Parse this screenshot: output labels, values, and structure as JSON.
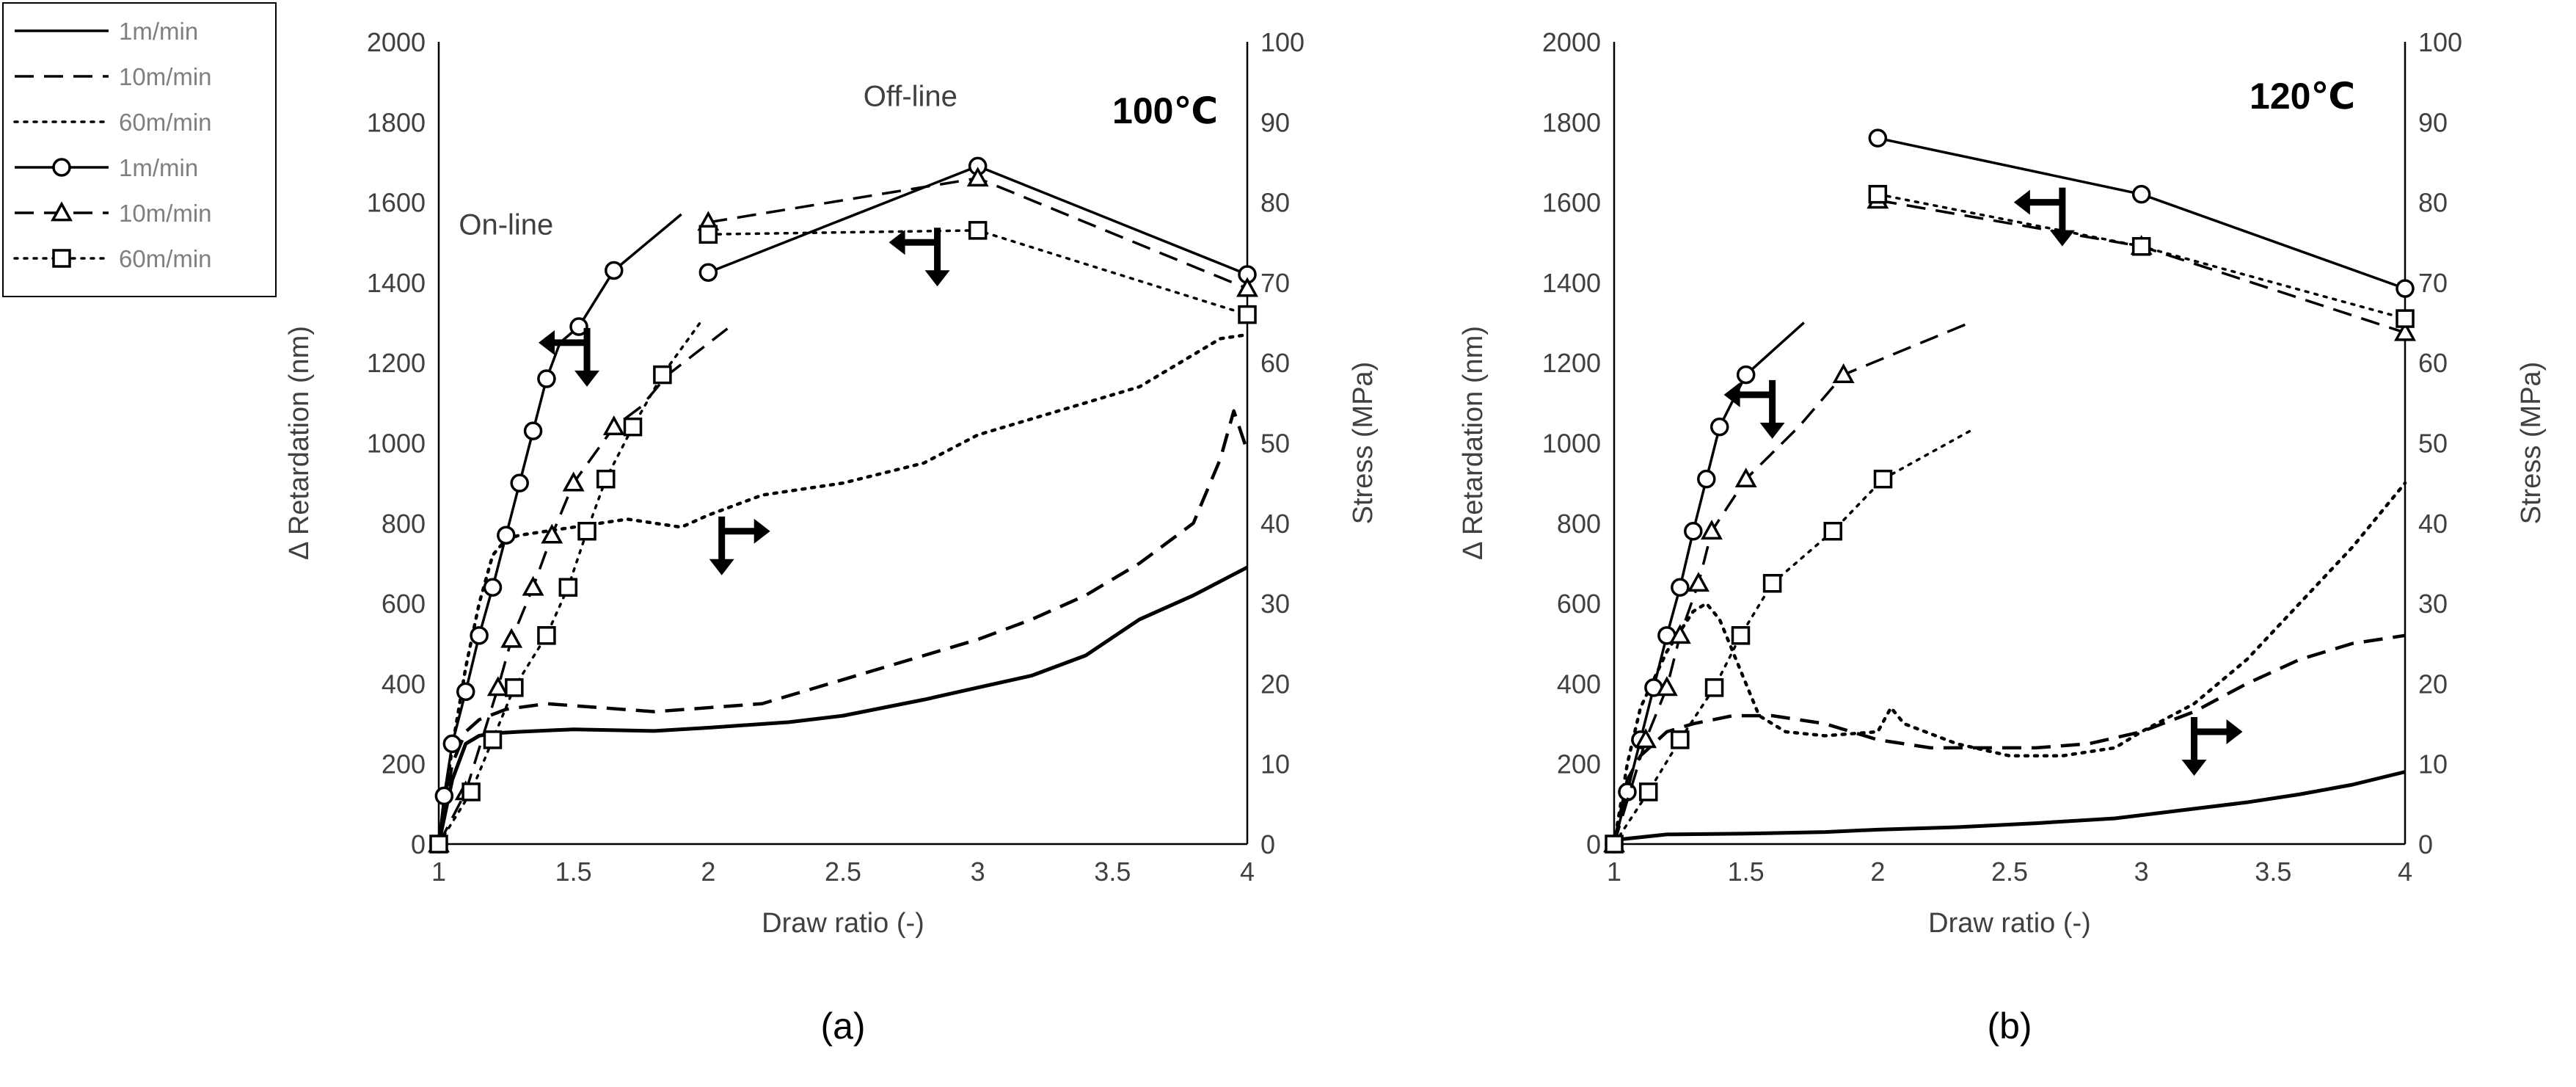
{
  "legend": {
    "entries": [
      {
        "label": "1m/min",
        "line": "solid",
        "marker": "none"
      },
      {
        "label": "10m/min",
        "line": "dashed",
        "marker": "none"
      },
      {
        "label": "60m/min",
        "line": "dotted",
        "marker": "none"
      },
      {
        "label": "1m/min",
        "line": "solid",
        "marker": "circle"
      },
      {
        "label": "10m/min",
        "line": "dashed",
        "marker": "triangle"
      },
      {
        "label": "60m/min",
        "line": "dotted",
        "marker": "square"
      }
    ]
  },
  "chart_data": [
    {
      "type": "line",
      "panel_label": "(a)",
      "temperature_label": "100℃",
      "xlabel": "Draw ratio (-)",
      "ylabel_left": "Δ Retardation (nm)",
      "ylabel_right": "Stress (MPa)",
      "xlim": [
        1,
        4
      ],
      "ylim_left": [
        0,
        2000
      ],
      "ylim_right": [
        0,
        100
      ],
      "x_ticks": [
        "1",
        "1.5",
        "2",
        "2.5",
        "3",
        "3.5",
        "4"
      ],
      "y_left_ticks": [
        "0",
        "200",
        "400",
        "600",
        "800",
        "1000",
        "1200",
        "1400",
        "1600",
        "1800",
        "2000"
      ],
      "y_right_ticks": [
        "0",
        "10",
        "20",
        "30",
        "40",
        "50",
        "60",
        "70",
        "80",
        "90",
        "100"
      ],
      "annotations": [
        "On-line",
        "Off-line"
      ],
      "retardation_series": [
        {
          "speed": "1m/min",
          "mode": "On-line",
          "line": "solid",
          "marker": "circle",
          "x": [
            1.0,
            1.02,
            1.05,
            1.1,
            1.15,
            1.2,
            1.25,
            1.3,
            1.35,
            1.4,
            1.45,
            1.52,
            1.65,
            1.9
          ],
          "y": [
            0,
            120,
            250,
            380,
            520,
            640,
            770,
            900,
            1030,
            1160,
            1250,
            1290,
            1430,
            1570
          ],
          "marked": [
            true,
            true,
            true,
            true,
            true,
            true,
            true,
            true,
            true,
            true,
            false,
            true,
            true,
            false
          ]
        },
        {
          "speed": "10m/min",
          "mode": "On-line",
          "line": "dashed",
          "marker": "triangle",
          "x": [
            1.0,
            1.1,
            1.22,
            1.27,
            1.35,
            1.42,
            1.5,
            1.65,
            1.75,
            1.85,
            2.1
          ],
          "y": [
            0,
            130,
            390,
            510,
            640,
            770,
            900,
            1040,
            1090,
            1170,
            1300
          ],
          "marked": [
            true,
            true,
            true,
            true,
            true,
            true,
            true,
            true,
            false,
            false,
            false
          ]
        },
        {
          "speed": "60m/min",
          "mode": "On-line",
          "line": "dotted",
          "marker": "square",
          "x": [
            1.0,
            1.12,
            1.2,
            1.28,
            1.4,
            1.48,
            1.55,
            1.62,
            1.72,
            1.83,
            1.97
          ],
          "y": [
            0,
            130,
            260,
            390,
            520,
            640,
            780,
            910,
            1040,
            1170,
            1300
          ],
          "marked": [
            true,
            true,
            true,
            true,
            true,
            true,
            true,
            true,
            true,
            true,
            false
          ]
        },
        {
          "speed": "1m/min",
          "mode": "Off-line",
          "line": "solid",
          "marker": "circle",
          "x": [
            2.0,
            3.0,
            4.0
          ],
          "y": [
            1425,
            1690,
            1420
          ],
          "marked": [
            true,
            true,
            true
          ]
        },
        {
          "speed": "10m/min",
          "mode": "Off-line",
          "line": "dashed",
          "marker": "triangle",
          "x": [
            2.0,
            3.0,
            4.0
          ],
          "y": [
            1550,
            1660,
            1385
          ],
          "marked": [
            true,
            true,
            true
          ]
        },
        {
          "speed": "60m/min",
          "mode": "Off-line",
          "line": "dotted",
          "marker": "square",
          "x": [
            2.0,
            3.0,
            4.0
          ],
          "y": [
            1520,
            1530,
            1320
          ],
          "marked": [
            true,
            true,
            true
          ]
        }
      ],
      "stress_series": [
        {
          "speed": "1m/min",
          "line": "solid",
          "x": [
            1.0,
            1.05,
            1.1,
            1.15,
            1.2,
            1.3,
            1.5,
            1.8,
            2.0,
            2.3,
            2.5,
            2.8,
            3.0,
            3.2,
            3.4,
            3.6,
            3.8,
            4.0
          ],
          "y": [
            0,
            8,
            12.5,
            13.5,
            13.8,
            14,
            14.3,
            14.1,
            14.5,
            15.2,
            16,
            18,
            19.5,
            21,
            23.5,
            28,
            31,
            34.5
          ]
        },
        {
          "speed": "10m/min",
          "line": "dashed",
          "x": [
            1.0,
            1.05,
            1.1,
            1.15,
            1.25,
            1.4,
            1.6,
            1.8,
            2.0,
            2.2,
            2.4,
            2.6,
            2.8,
            3.0,
            3.2,
            3.4,
            3.6,
            3.8,
            3.9,
            3.95,
            4.0
          ],
          "y": [
            0,
            10,
            14,
            15.5,
            16.8,
            17.5,
            17,
            16.5,
            17,
            17.5,
            19.5,
            21.5,
            23.5,
            25.5,
            28,
            31,
            35,
            40,
            48,
            54,
            49
          ]
        },
        {
          "speed": "60m/min",
          "line": "dotted",
          "x": [
            1.0,
            1.05,
            1.1,
            1.15,
            1.2,
            1.25,
            1.3,
            1.5,
            1.7,
            1.9,
            2.0,
            2.2,
            2.5,
            2.8,
            3.0,
            3.3,
            3.6,
            3.9,
            4.0
          ],
          "y": [
            0,
            12,
            22,
            30,
            36,
            38,
            38.5,
            39.5,
            40.5,
            39.5,
            41,
            43.5,
            45,
            47.5,
            51,
            54,
            57,
            63,
            63.5
          ]
        }
      ],
      "arrow_glyphs": [
        {
          "x": 1.55,
          "y": 1250,
          "direction": "left-down"
        },
        {
          "x": 2.85,
          "y": 1500,
          "direction": "left-down"
        },
        {
          "x": 2.05,
          "y": 780,
          "direction": "right-down"
        }
      ]
    },
    {
      "type": "line",
      "panel_label": "(b)",
      "temperature_label": "120℃",
      "xlabel": "Draw ratio (-)",
      "ylabel_left": "Δ Retardation (nm)",
      "ylabel_right": "Stress (MPa)",
      "xlim": [
        1,
        4
      ],
      "ylim_left": [
        0,
        2000
      ],
      "ylim_right": [
        0,
        100
      ],
      "x_ticks": [
        "1",
        "1.5",
        "2",
        "2.5",
        "3",
        "3.5",
        "4"
      ],
      "y_left_ticks": [
        "0",
        "200",
        "400",
        "600",
        "800",
        "1000",
        "1200",
        "1400",
        "1600",
        "1800",
        "2000"
      ],
      "y_right_ticks": [
        "0",
        "10",
        "20",
        "30",
        "40",
        "50",
        "60",
        "70",
        "80",
        "90",
        "100"
      ],
      "retardation_series": [
        {
          "speed": "1m/min",
          "mode": "On-line",
          "line": "solid",
          "marker": "circle",
          "x": [
            1.0,
            1.05,
            1.1,
            1.15,
            1.2,
            1.25,
            1.3,
            1.35,
            1.4,
            1.5,
            1.72
          ],
          "y": [
            0,
            130,
            260,
            390,
            520,
            640,
            780,
            910,
            1040,
            1170,
            1300
          ],
          "marked": [
            true,
            true,
            true,
            true,
            true,
            true,
            true,
            true,
            true,
            true,
            false
          ]
        },
        {
          "speed": "10m/min",
          "mode": "On-line",
          "line": "dashed",
          "marker": "triangle",
          "x": [
            1.0,
            1.12,
            1.2,
            1.25,
            1.32,
            1.37,
            1.5,
            1.7,
            1.87,
            2.35
          ],
          "y": [
            0,
            260,
            390,
            520,
            650,
            780,
            910,
            1040,
            1170,
            1300
          ],
          "marked": [
            true,
            true,
            true,
            true,
            true,
            true,
            true,
            false,
            true,
            false
          ]
        },
        {
          "speed": "60m/min",
          "mode": "On-line",
          "line": "dotted",
          "marker": "square",
          "x": [
            1.0,
            1.13,
            1.25,
            1.38,
            1.48,
            1.6,
            1.83,
            2.02,
            2.35
          ],
          "y": [
            0,
            130,
            260,
            390,
            520,
            650,
            780,
            910,
            1030
          ],
          "marked": [
            true,
            true,
            true,
            true,
            true,
            true,
            true,
            true,
            false
          ]
        },
        {
          "speed": "1m/min",
          "mode": "Off-line",
          "line": "solid",
          "marker": "circle",
          "x": [
            2.0,
            3.0,
            4.0
          ],
          "y": [
            1760,
            1620,
            1385
          ],
          "marked": [
            true,
            true,
            true
          ]
        },
        {
          "speed": "10m/min",
          "mode": "Off-line",
          "line": "dashed",
          "marker": "triangle",
          "x": [
            2.0,
            3.0,
            4.0
          ],
          "y": [
            1605,
            1490,
            1275
          ],
          "marked": [
            true,
            true,
            true
          ]
        },
        {
          "speed": "60m/min",
          "mode": "Off-line",
          "line": "dotted",
          "marker": "square",
          "x": [
            2.0,
            3.0,
            4.0
          ],
          "y": [
            1620,
            1490,
            1310
          ],
          "marked": [
            true,
            true,
            true
          ]
        }
      ],
      "stress_series": [
        {
          "speed": "1m/min",
          "line": "solid",
          "x": [
            1.0,
            1.2,
            1.5,
            1.8,
            2.0,
            2.3,
            2.6,
            2.9,
            3.0,
            3.2,
            3.4,
            3.6,
            3.8,
            4.0
          ],
          "y": [
            0.5,
            1.2,
            1.3,
            1.5,
            1.8,
            2.1,
            2.6,
            3.2,
            3.6,
            4.4,
            5.2,
            6.2,
            7.4,
            9
          ]
        },
        {
          "speed": "10m/min",
          "line": "dashed",
          "x": [
            1.0,
            1.05,
            1.1,
            1.2,
            1.3,
            1.45,
            1.6,
            1.8,
            2.0,
            2.2,
            2.4,
            2.6,
            2.8,
            3.0,
            3.2,
            3.4,
            3.6,
            3.8,
            4.0
          ],
          "y": [
            0,
            8,
            11,
            14,
            15,
            16,
            16,
            15,
            13,
            12,
            12,
            12,
            12.5,
            14,
            16.5,
            20,
            23,
            25,
            26
          ]
        },
        {
          "speed": "60m/min",
          "line": "dotted",
          "x": [
            1.0,
            1.05,
            1.1,
            1.2,
            1.3,
            1.35,
            1.4,
            1.45,
            1.5,
            1.55,
            1.65,
            1.8,
            2.0,
            2.05,
            2.1,
            2.3,
            2.5,
            2.7,
            2.9,
            3.0,
            3.2,
            3.4,
            3.6,
            3.8,
            3.9,
            4.0
          ],
          "y": [
            0,
            10,
            17,
            24,
            29,
            30,
            28,
            24,
            20,
            16,
            14,
            13.5,
            14,
            17,
            15,
            12.5,
            11,
            11,
            12,
            14,
            17.5,
            23,
            30,
            37,
            41,
            45
          ]
        }
      ],
      "arrow_glyphs": [
        {
          "x": 1.6,
          "y": 1120,
          "direction": "left-down"
        },
        {
          "x": 2.7,
          "y": 1600,
          "direction": "left-down"
        },
        {
          "x": 3.2,
          "y": 280,
          "direction": "right-down"
        }
      ]
    }
  ]
}
